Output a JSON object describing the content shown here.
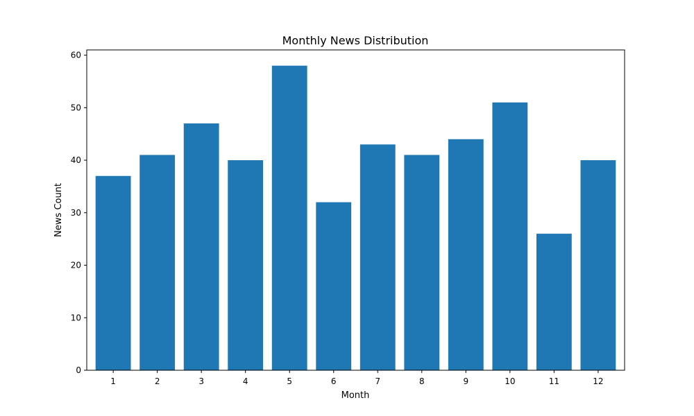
{
  "chart_data": {
    "type": "bar",
    "title": "Monthly News Distribution",
    "xlabel": "Month",
    "ylabel": "News Count",
    "categories": [
      "1",
      "2",
      "3",
      "4",
      "5",
      "6",
      "7",
      "8",
      "9",
      "10",
      "11",
      "12"
    ],
    "values": [
      37,
      41,
      47,
      40,
      58,
      32,
      43,
      41,
      44,
      51,
      26,
      40
    ],
    "ylim": [
      0,
      61
    ],
    "yticks": [
      0,
      10,
      20,
      30,
      40,
      50,
      60
    ],
    "grid": false,
    "bar_color": "#1f77b4"
  }
}
